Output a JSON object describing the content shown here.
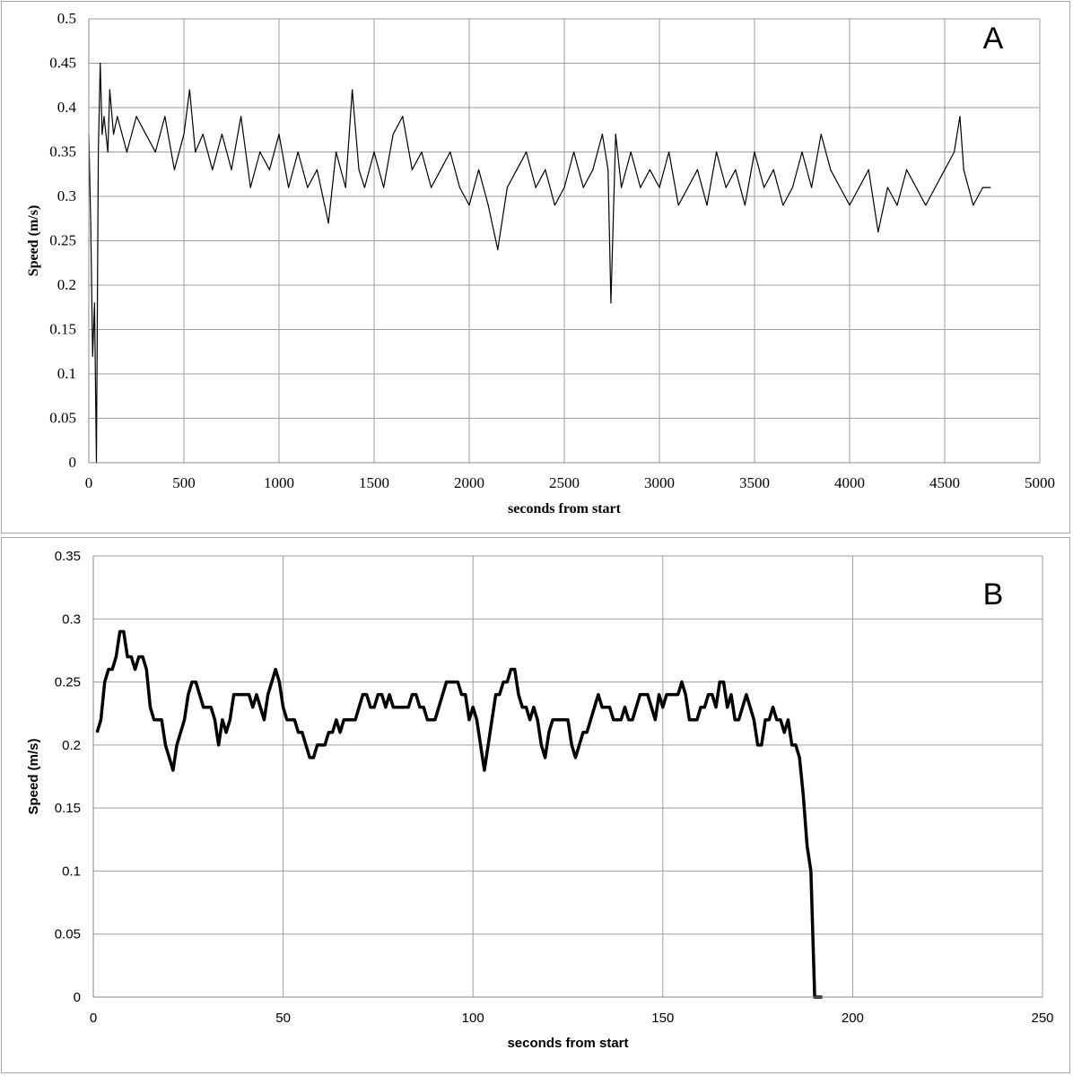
{
  "chart_data": [
    {
      "panel_label": "A",
      "type": "line",
      "xlabel": "seconds from start",
      "ylabel": "Speed (m/s)",
      "xlim": [
        0,
        5000
      ],
      "ylim": [
        0,
        0.5
      ],
      "x_ticks": [
        0,
        500,
        1000,
        1500,
        2000,
        2500,
        3000,
        3500,
        4000,
        4500,
        5000
      ],
      "x_tick_labels": [
        "0",
        "500",
        "1000",
        "1500",
        "2000",
        "2500",
        "3000",
        "3500",
        "4000",
        "4500",
        "5000"
      ],
      "y_ticks": [
        0,
        0.05,
        0.1,
        0.15,
        0.2,
        0.25,
        0.3,
        0.35,
        0.4,
        0.45,
        0.5
      ],
      "y_tick_labels": [
        "0",
        "0.05",
        "0.1",
        "0.15",
        "0.2",
        "0.25",
        "0.3",
        "0.35",
        "0.4",
        "0.45",
        "0.5"
      ],
      "grid": true,
      "line_color": "#000000",
      "series": [
        {
          "x": [
            0,
            10,
            20,
            30,
            40,
            50,
            60,
            70,
            80,
            100,
            110,
            130,
            150,
            200,
            250,
            300,
            350,
            400,
            450,
            500,
            530,
            560,
            600,
            650,
            700,
            750,
            800,
            850,
            900,
            950,
            1000,
            1050,
            1100,
            1150,
            1200,
            1260,
            1300,
            1350,
            1385,
            1420,
            1450,
            1500,
            1550,
            1600,
            1650,
            1700,
            1750,
            1800,
            1850,
            1900,
            1950,
            2000,
            2050,
            2100,
            2150,
            2200,
            2250,
            2300,
            2350,
            2400,
            2450,
            2500,
            2550,
            2600,
            2650,
            2700,
            2730,
            2745,
            2770,
            2800,
            2850,
            2900,
            2950,
            3000,
            3050,
            3100,
            3150,
            3200,
            3250,
            3300,
            3350,
            3400,
            3450,
            3500,
            3550,
            3600,
            3650,
            3700,
            3750,
            3800,
            3850,
            3900,
            3950,
            4000,
            4050,
            4100,
            4150,
            4200,
            4250,
            4300,
            4350,
            4400,
            4450,
            4500,
            4550,
            4580,
            4600,
            4650,
            4700,
            4740
          ],
          "y": [
            0.37,
            0.27,
            0.12,
            0.18,
            0.0,
            0.35,
            0.45,
            0.37,
            0.39,
            0.35,
            0.42,
            0.37,
            0.39,
            0.35,
            0.39,
            0.37,
            0.35,
            0.39,
            0.33,
            0.37,
            0.42,
            0.35,
            0.37,
            0.33,
            0.37,
            0.33,
            0.39,
            0.31,
            0.35,
            0.33,
            0.37,
            0.31,
            0.35,
            0.31,
            0.33,
            0.27,
            0.35,
            0.31,
            0.42,
            0.33,
            0.31,
            0.35,
            0.31,
            0.37,
            0.39,
            0.33,
            0.35,
            0.31,
            0.33,
            0.35,
            0.31,
            0.29,
            0.33,
            0.29,
            0.24,
            0.31,
            0.33,
            0.35,
            0.31,
            0.33,
            0.29,
            0.31,
            0.35,
            0.31,
            0.33,
            0.37,
            0.33,
            0.18,
            0.37,
            0.31,
            0.35,
            0.31,
            0.33,
            0.31,
            0.35,
            0.29,
            0.31,
            0.33,
            0.29,
            0.35,
            0.31,
            0.33,
            0.29,
            0.35,
            0.31,
            0.33,
            0.29,
            0.31,
            0.35,
            0.31,
            0.37,
            0.33,
            0.31,
            0.29,
            0.31,
            0.33,
            0.26,
            0.31,
            0.29,
            0.33,
            0.31,
            0.29,
            0.31,
            0.33,
            0.35,
            0.39,
            0.33,
            0.29,
            0.31,
            0.31
          ]
        }
      ]
    },
    {
      "panel_label": "B",
      "type": "line",
      "xlabel": "seconds from start",
      "ylabel": "Speed (m/s)",
      "xlim": [
        0,
        250
      ],
      "ylim": [
        0,
        0.35
      ],
      "x_ticks": [
        0,
        50,
        100,
        150,
        200,
        250
      ],
      "x_tick_labels": [
        "0",
        "50",
        "100",
        "150",
        "200",
        "250"
      ],
      "y_ticks": [
        0,
        0.05,
        0.1,
        0.15,
        0.2,
        0.25,
        0.3,
        0.35
      ],
      "y_tick_labels": [
        "0",
        "0.05",
        "0.1",
        "0.15",
        "0.2",
        "0.25",
        "0.3",
        "0.35"
      ],
      "grid": true,
      "line_color": "#000000",
      "series": [
        {
          "x": [
            1,
            2,
            3,
            4,
            5,
            6,
            7,
            8,
            9,
            10,
            11,
            12,
            13,
            14,
            15,
            16,
            17,
            18,
            19,
            20,
            21,
            22,
            23,
            24,
            25,
            26,
            27,
            28,
            29,
            30,
            31,
            32,
            33,
            34,
            35,
            36,
            37,
            38,
            39,
            40,
            41,
            42,
            43,
            44,
            45,
            46,
            47,
            48,
            49,
            50,
            51,
            52,
            53,
            54,
            55,
            56,
            57,
            58,
            59,
            60,
            61,
            62,
            63,
            64,
            65,
            66,
            67,
            68,
            69,
            70,
            71,
            72,
            73,
            74,
            75,
            76,
            77,
            78,
            79,
            80,
            81,
            82,
            83,
            84,
            85,
            86,
            87,
            88,
            89,
            90,
            91,
            92,
            93,
            94,
            95,
            96,
            97,
            98,
            99,
            100,
            101,
            102,
            103,
            104,
            105,
            106,
            107,
            108,
            109,
            110,
            111,
            112,
            113,
            114,
            115,
            116,
            117,
            118,
            119,
            120,
            121,
            122,
            123,
            124,
            125,
            126,
            127,
            128,
            129,
            130,
            131,
            132,
            133,
            134,
            135,
            136,
            137,
            138,
            139,
            140,
            141,
            142,
            143,
            144,
            145,
            146,
            147,
            148,
            149,
            150,
            151,
            152,
            153,
            154,
            155,
            156,
            157,
            158,
            159,
            160,
            161,
            162,
            163,
            164,
            165,
            166,
            167,
            168,
            169,
            170,
            171,
            172,
            173,
            174,
            175,
            176,
            177,
            178,
            179,
            180,
            181,
            182,
            183,
            184,
            185,
            186,
            187,
            188,
            189,
            190,
            191,
            192
          ],
          "y": [
            0.21,
            0.22,
            0.25,
            0.26,
            0.26,
            0.27,
            0.29,
            0.29,
            0.27,
            0.27,
            0.26,
            0.27,
            0.27,
            0.26,
            0.23,
            0.22,
            0.22,
            0.22,
            0.2,
            0.19,
            0.18,
            0.2,
            0.21,
            0.22,
            0.24,
            0.25,
            0.25,
            0.24,
            0.23,
            0.23,
            0.23,
            0.22,
            0.2,
            0.22,
            0.21,
            0.22,
            0.24,
            0.24,
            0.24,
            0.24,
            0.24,
            0.23,
            0.24,
            0.23,
            0.22,
            0.24,
            0.25,
            0.26,
            0.25,
            0.23,
            0.22,
            0.22,
            0.22,
            0.21,
            0.21,
            0.2,
            0.19,
            0.19,
            0.2,
            0.2,
            0.2,
            0.21,
            0.21,
            0.22,
            0.21,
            0.22,
            0.22,
            0.22,
            0.22,
            0.23,
            0.24,
            0.24,
            0.23,
            0.23,
            0.24,
            0.24,
            0.23,
            0.24,
            0.23,
            0.23,
            0.23,
            0.23,
            0.23,
            0.24,
            0.24,
            0.23,
            0.23,
            0.22,
            0.22,
            0.22,
            0.23,
            0.24,
            0.25,
            0.25,
            0.25,
            0.25,
            0.24,
            0.24,
            0.22,
            0.23,
            0.22,
            0.2,
            0.18,
            0.2,
            0.22,
            0.24,
            0.24,
            0.25,
            0.25,
            0.26,
            0.26,
            0.24,
            0.23,
            0.23,
            0.22,
            0.23,
            0.22,
            0.2,
            0.19,
            0.21,
            0.22,
            0.22,
            0.22,
            0.22,
            0.22,
            0.2,
            0.19,
            0.2,
            0.21,
            0.21,
            0.22,
            0.23,
            0.24,
            0.23,
            0.23,
            0.23,
            0.22,
            0.22,
            0.22,
            0.23,
            0.22,
            0.22,
            0.23,
            0.24,
            0.24,
            0.24,
            0.23,
            0.22,
            0.24,
            0.23,
            0.24,
            0.24,
            0.24,
            0.24,
            0.25,
            0.24,
            0.22,
            0.22,
            0.22,
            0.23,
            0.23,
            0.24,
            0.24,
            0.23,
            0.25,
            0.25,
            0.23,
            0.24,
            0.22,
            0.22,
            0.23,
            0.24,
            0.23,
            0.22,
            0.2,
            0.2,
            0.22,
            0.22,
            0.23,
            0.22,
            0.22,
            0.21,
            0.22,
            0.2,
            0.2,
            0.19,
            0.16,
            0.12,
            0.1,
            0.0,
            0.0,
            0.0
          ]
        }
      ]
    }
  ]
}
